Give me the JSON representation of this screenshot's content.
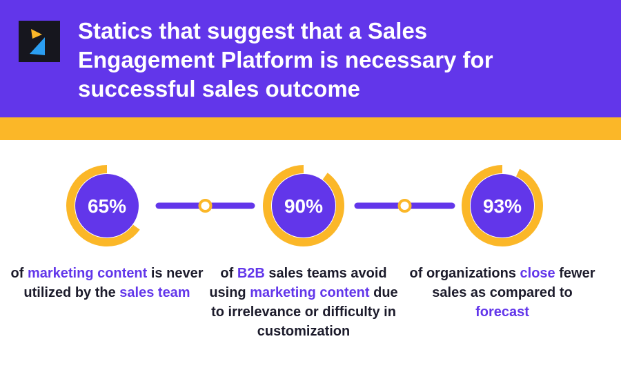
{
  "header": {
    "title": "Statics that suggest that a Sales Engagement Platform is necessary for successful sales outcome"
  },
  "stats": [
    {
      "value": 65,
      "label": "65%",
      "description": [
        {
          "text": "of ",
          "accent": false
        },
        {
          "text": "marketing content",
          "accent": true
        },
        {
          "text": " is never utilized by the ",
          "accent": false
        },
        {
          "text": "sales team",
          "accent": true
        }
      ]
    },
    {
      "value": 90,
      "label": "90%",
      "description": [
        {
          "text": "of ",
          "accent": false
        },
        {
          "text": "B2B",
          "accent": true
        },
        {
          "text": " sales teams avoid using ",
          "accent": false
        },
        {
          "text": "marketing content",
          "accent": true
        },
        {
          "text": " due to irrelevance or difficulty in customization",
          "accent": false
        }
      ]
    },
    {
      "value": 93,
      "label": "93%",
      "description": [
        {
          "text": "of organizations ",
          "accent": false
        },
        {
          "text": "close",
          "accent": true
        },
        {
          "text": " fewer sales as compared to ",
          "accent": false
        },
        {
          "text": "forecast",
          "accent": true
        }
      ]
    }
  ]
}
